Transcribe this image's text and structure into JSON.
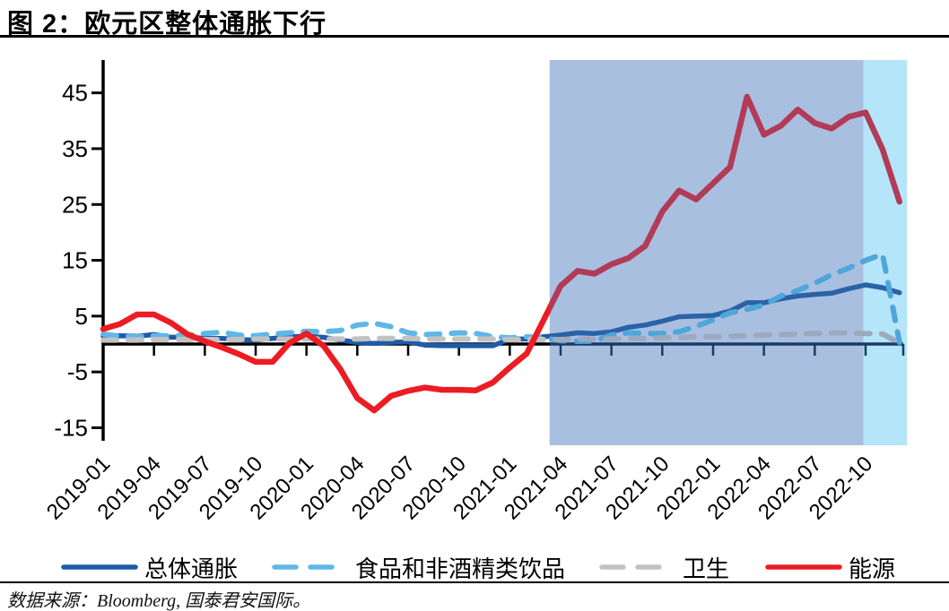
{
  "title": "图 2：欧元区整体通胀下行",
  "source": "数据来源：Bloomberg, 国泰君安国际。",
  "chart_data": {
    "type": "line",
    "months": [
      "2019-01",
      "2019-02",
      "2019-03",
      "2019-04",
      "2019-05",
      "2019-06",
      "2019-07",
      "2019-08",
      "2019-09",
      "2019-10",
      "2019-11",
      "2019-12",
      "2020-01",
      "2020-02",
      "2020-03",
      "2020-04",
      "2020-05",
      "2020-06",
      "2020-07",
      "2020-08",
      "2020-09",
      "2020-10",
      "2020-11",
      "2020-12",
      "2021-01",
      "2021-02",
      "2021-03",
      "2021-04",
      "2021-05",
      "2021-06",
      "2021-07",
      "2021-08",
      "2021-09",
      "2021-10",
      "2021-11",
      "2021-12",
      "2022-01",
      "2022-02",
      "2022-03",
      "2022-04",
      "2022-05",
      "2022-06",
      "2022-07",
      "2022-08",
      "2022-09",
      "2022-10",
      "2022-11",
      "2022-12"
    ],
    "x_tick_labels": [
      "2019-01",
      "2019-04",
      "2019-07",
      "2019-10",
      "2020-01",
      "2020-04",
      "2020-07",
      "2020-10",
      "2021-01",
      "2021-04",
      "2021-07",
      "2021-10",
      "2022-01",
      "2022-04",
      "2022-07",
      "2022-10"
    ],
    "y_ticks": [
      -15,
      -5,
      5,
      15,
      25,
      35,
      45
    ],
    "ylim": [
      -16.5,
      48
    ],
    "xlabel": "",
    "ylabel": "",
    "grid": false,
    "legend_position": "bottom",
    "axis_color": "#000000",
    "zero_line_color_shaded": "#1B3B66",
    "series": [
      {
        "name": "总体通胀",
        "style": "solid",
        "color": "#1E5BA8",
        "shaded_color": "#2A62A8",
        "values": [
          1.4,
          1.5,
          1.4,
          1.7,
          1.2,
          1.3,
          1.0,
          1.0,
          0.8,
          0.7,
          1.0,
          1.3,
          1.4,
          1.2,
          0.7,
          0.3,
          0.1,
          0.3,
          0.4,
          -0.2,
          -0.3,
          -0.3,
          -0.3,
          -0.3,
          0.9,
          0.9,
          1.3,
          1.6,
          2.0,
          1.9,
          2.2,
          3.0,
          3.4,
          4.1,
          4.9,
          5.0,
          5.1,
          5.9,
          7.4,
          7.4,
          8.1,
          8.6,
          8.9,
          9.1,
          9.9,
          10.6,
          10.1,
          9.2
        ]
      },
      {
        "name": "食品和非酒精类饮品",
        "style": "dashed",
        "color": "#5FB7E8",
        "shaded_color": "#4FA6D9",
        "values": [
          1.8,
          1.4,
          1.3,
          1.5,
          1.5,
          1.6,
          1.9,
          2.1,
          1.6,
          1.5,
          1.8,
          2.0,
          2.3,
          2.2,
          2.4,
          3.4,
          3.7,
          3.1,
          2.0,
          1.7,
          1.8,
          2.0,
          1.9,
          1.3,
          1.1,
          1.3,
          1.1,
          0.6,
          0.5,
          0.5,
          1.6,
          2.0,
          1.9,
          1.9,
          2.2,
          3.2,
          4.3,
          5.6,
          6.2,
          7.0,
          8.6,
          9.6,
          10.9,
          12.4,
          13.6,
          15.0,
          16.1,
          0.3
        ]
      },
      {
        "name": "卫生",
        "style": "dashed",
        "color": "#C2C2C2",
        "shaded_color": "#9DA9BD",
        "values": [
          0.7,
          0.7,
          0.7,
          0.8,
          0.8,
          0.8,
          0.8,
          0.8,
          0.8,
          0.9,
          0.9,
          0.9,
          0.9,
          0.9,
          0.9,
          0.9,
          1.0,
          1.0,
          1.0,
          0.9,
          0.9,
          0.9,
          0.9,
          0.9,
          0.8,
          0.8,
          0.8,
          0.8,
          0.9,
          0.9,
          0.9,
          1.0,
          1.0,
          1.1,
          1.2,
          1.3,
          1.3,
          1.4,
          1.5,
          1.6,
          1.7,
          1.8,
          1.9,
          2.0,
          2.0,
          1.9,
          1.8,
          0.2
        ]
      },
      {
        "name": "能源",
        "style": "solid",
        "color": "#EC1C24",
        "shaded_color": "#B23B58",
        "values": [
          2.7,
          3.6,
          5.3,
          5.3,
          3.8,
          1.7,
          0.5,
          -0.6,
          -1.8,
          -3.2,
          -3.2,
          0.2,
          1.9,
          -0.3,
          -4.5,
          -9.7,
          -11.9,
          -9.3,
          -8.4,
          -7.8,
          -8.2,
          -8.2,
          -8.3,
          -6.9,
          -4.2,
          -1.7,
          4.3,
          10.4,
          13.1,
          12.6,
          14.3,
          15.4,
          17.6,
          23.7,
          27.5,
          25.9,
          28.8,
          31.7,
          44.3,
          37.5,
          39.1,
          42.0,
          39.6,
          38.6,
          40.7,
          41.5,
          34.9,
          25.5
        ]
      }
    ],
    "highlight_regions": [
      {
        "from_month_index": 26.35,
        "to_month_index": 44.87,
        "approx_from": "2021-04",
        "approx_to": "2022-10",
        "color": "#A9BFE0"
      },
      {
        "from_month_index": 44.87,
        "to_month_index": 47.45,
        "approx_from": "2022-10",
        "approx_to": "2022-12",
        "color": "#B5E5F9"
      }
    ]
  }
}
